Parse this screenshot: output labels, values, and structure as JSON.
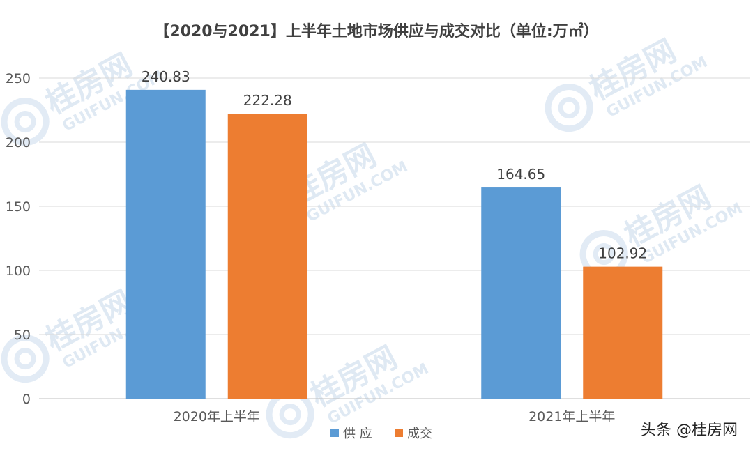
{
  "chart_data": {
    "type": "bar",
    "title": "【2020与2021】上半年土地市场供应与成交对比（单位:万㎡）",
    "categories": [
      "2020年上半年",
      "2021年上半年"
    ],
    "series": [
      {
        "name": "供 应",
        "values": [
          240.83,
          164.65
        ],
        "color": "#5b9bd5"
      },
      {
        "name": "成交",
        "values": [
          222.28,
          102.92
        ],
        "color": "#ed7d31"
      }
    ],
    "value_labels": [
      [
        "240.83",
        "164.65"
      ],
      [
        "222.28",
        "102.92"
      ]
    ],
    "ylim": [
      0,
      250
    ],
    "yticks": [
      "0",
      "50",
      "100",
      "150",
      "200",
      "250"
    ],
    "grid": true,
    "legend_position": "bottom"
  },
  "watermark": {
    "brand": "桂房网",
    "domain": "GUIFUN.COM"
  },
  "footer": {
    "credit": "头条 @桂房网"
  }
}
